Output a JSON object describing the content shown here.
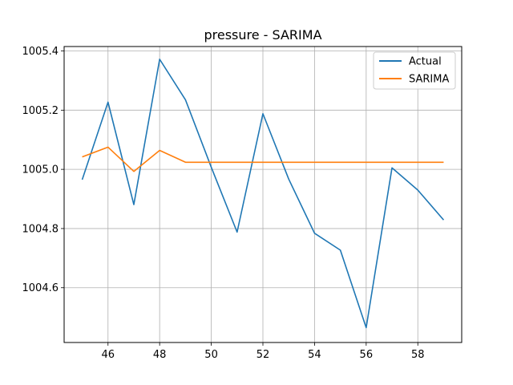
{
  "chart_data": {
    "type": "line",
    "title": "pressure - SARIMA",
    "xlabel": "",
    "ylabel": "",
    "xlim": [
      44.3,
      59.7
    ],
    "ylim": [
      1004.415,
      1005.415
    ],
    "x_ticks": [
      46,
      48,
      50,
      52,
      54,
      56,
      58
    ],
    "y_ticks": [
      1004.6,
      1004.8,
      1005.0,
      1005.2,
      1005.4
    ],
    "x_tick_labels": [
      "46",
      "48",
      "50",
      "52",
      "54",
      "56",
      "58"
    ],
    "y_tick_labels": [
      "1004.6",
      "1004.8",
      "1005.0",
      "1005.2",
      "1005.4"
    ],
    "grid": true,
    "legend_position": "top-right",
    "x": [
      45,
      46,
      47,
      48,
      49,
      50,
      51,
      52,
      53,
      54,
      55,
      56,
      57,
      58,
      59
    ],
    "series": [
      {
        "name": "Actual",
        "color": "#1f77b4",
        "values": [
          1004.965,
          1005.227,
          1004.881,
          1005.372,
          1005.235,
          1005.007,
          1004.788,
          1005.188,
          1004.967,
          1004.784,
          1004.727,
          1004.465,
          1005.005,
          1004.93,
          1004.829
        ]
      },
      {
        "name": "SARIMA",
        "color": "#ff7f0e",
        "values": [
          1005.042,
          1005.075,
          1004.993,
          1005.064,
          1005.024,
          1005.024,
          1005.024,
          1005.024,
          1005.024,
          1005.024,
          1005.024,
          1005.024,
          1005.024,
          1005.024,
          1005.024
        ]
      }
    ]
  }
}
